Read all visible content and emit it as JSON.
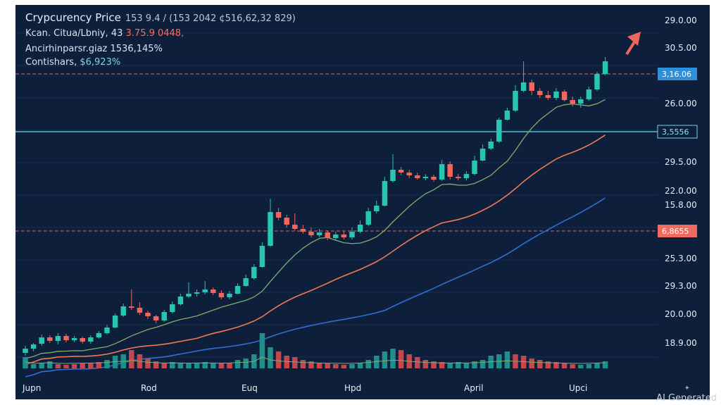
{
  "chart_data": {
    "type": "candlestick",
    "title": "Crypcurency Price",
    "title_values": "153 9.4 / (153 2042 ¢516,62,32 829)",
    "info": [
      {
        "label": "Kcan. Citua/Lbniy, 43",
        "value": "3.75.9 0448,"
      },
      {
        "label": "Ancirhinparsr.giaz",
        "value": "1536,145%"
      },
      {
        "label": "Contishars,",
        "value": "$6,923%"
      }
    ],
    "colors": {
      "background": "#0d1f3a",
      "up": "#26c6b0",
      "down": "#f0655c",
      "ma_fast": "#7fb069",
      "ma_mid": "#f07a52",
      "ma_slow": "#2f6fd6",
      "hline_red": "#d86a6a",
      "hline_cyan": "#6fd6ee",
      "label_blue": "#2f8fd8",
      "label_red": "#ef6b60"
    },
    "y_axis_labels": [
      "29.0.00",
      "30.5.00",
      "26.0.00",
      "29.5.00",
      "22.0.00",
      "15.8.00",
      "25.3.00",
      "29.3.00",
      "20.0.00",
      "18.9.00"
    ],
    "price_labels": [
      {
        "text": "3,16.06",
        "style": "blue"
      },
      {
        "text": "3,5556",
        "style": "cyan"
      },
      {
        "text": "6,8655",
        "style": "red"
      }
    ],
    "x_axis_labels": [
      "Jupn",
      "Rod",
      "Euq",
      "Hpd",
      "April",
      "Upci"
    ],
    "candles": [
      [
        494,
        488,
        498,
        484
      ],
      [
        488,
        482,
        492,
        480
      ],
      [
        481,
        472,
        484,
        468
      ],
      [
        472,
        477,
        480,
        469
      ],
      [
        477,
        470,
        482,
        466
      ],
      [
        470,
        476,
        479,
        467
      ],
      [
        476,
        473,
        479,
        470
      ],
      [
        473,
        478,
        481,
        471
      ],
      [
        478,
        472,
        481,
        469
      ],
      [
        472,
        466,
        474,
        463
      ],
      [
        466,
        458,
        468,
        454
      ],
      [
        458,
        441,
        459,
        438
      ],
      [
        441,
        428,
        443,
        424
      ],
      [
        428,
        430,
        433,
        404
      ],
      [
        430,
        437,
        440,
        422
      ],
      [
        437,
        442,
        446,
        434
      ],
      [
        442,
        448,
        452,
        440
      ],
      [
        448,
        436,
        450,
        433
      ],
      [
        436,
        425,
        438,
        421
      ],
      [
        425,
        414,
        427,
        410
      ],
      [
        414,
        410,
        416,
        394
      ],
      [
        410,
        408,
        414,
        404
      ],
      [
        408,
        404,
        411,
        392
      ],
      [
        404,
        409,
        412,
        401
      ],
      [
        409,
        415,
        418,
        405
      ],
      [
        415,
        410,
        418,
        406
      ],
      [
        410,
        399,
        411,
        395
      ],
      [
        399,
        388,
        400,
        383
      ],
      [
        388,
        372,
        390,
        368
      ],
      [
        372,
        342,
        373,
        337
      ],
      [
        342,
        294,
        343,
        275
      ],
      [
        294,
        302,
        306,
        288
      ],
      [
        302,
        312,
        316,
        298
      ],
      [
        312,
        318,
        320,
        296
      ],
      [
        318,
        322,
        325,
        312
      ],
      [
        322,
        327,
        330,
        316
      ],
      [
        327,
        323,
        330,
        318
      ],
      [
        323,
        331,
        334,
        320
      ],
      [
        331,
        326,
        334,
        322
      ],
      [
        326,
        330,
        333,
        321
      ],
      [
        330,
        322,
        333,
        316
      ],
      [
        322,
        312,
        324,
        306
      ],
      [
        312,
        293,
        314,
        288
      ],
      [
        293,
        285,
        296,
        278
      ],
      [
        285,
        250,
        286,
        244
      ],
      [
        250,
        234,
        252,
        212
      ],
      [
        234,
        238,
        242,
        230
      ],
      [
        238,
        242,
        246,
        234
      ],
      [
        242,
        246,
        248,
        238
      ],
      [
        246,
        244,
        249,
        240
      ],
      [
        244,
        248,
        251,
        241
      ],
      [
        248,
        226,
        250,
        220
      ],
      [
        226,
        244,
        248,
        222
      ],
      [
        244,
        246,
        249,
        240
      ],
      [
        246,
        240,
        249,
        236
      ],
      [
        240,
        221,
        242,
        214
      ],
      [
        221,
        204,
        222,
        198
      ],
      [
        204,
        194,
        206,
        190
      ],
      [
        194,
        163,
        196,
        160
      ],
      [
        163,
        150,
        164,
        146
      ],
      [
        150,
        122,
        152,
        114
      ],
      [
        122,
        110,
        124,
        80
      ],
      [
        110,
        122,
        128,
        106
      ],
      [
        122,
        128,
        132,
        118
      ],
      [
        128,
        132,
        135,
        122
      ],
      [
        132,
        123,
        135,
        118
      ],
      [
        123,
        135,
        137,
        120
      ],
      [
        135,
        140,
        144,
        130
      ],
      [
        140,
        134,
        146,
        130
      ],
      [
        134,
        120,
        136,
        116
      ],
      [
        120,
        98,
        122,
        95
      ],
      [
        98,
        80,
        100,
        74
      ]
    ],
    "volume": [
      [
        16,
        1
      ],
      [
        6,
        1
      ],
      [
        8,
        1
      ],
      [
        10,
        1
      ],
      [
        6,
        0
      ],
      [
        5,
        0
      ],
      [
        6,
        0
      ],
      [
        7,
        0
      ],
      [
        8,
        0
      ],
      [
        9,
        0
      ],
      [
        12,
        1
      ],
      [
        18,
        1
      ],
      [
        20,
        1
      ],
      [
        26,
        0
      ],
      [
        20,
        0
      ],
      [
        14,
        0
      ],
      [
        10,
        0
      ],
      [
        8,
        0
      ],
      [
        9,
        1
      ],
      [
        8,
        1
      ],
      [
        7,
        1
      ],
      [
        8,
        1
      ],
      [
        9,
        1
      ],
      [
        8,
        1
      ],
      [
        7,
        0
      ],
      [
        8,
        0
      ],
      [
        12,
        1
      ],
      [
        14,
        1
      ],
      [
        20,
        1
      ],
      [
        50,
        1
      ],
      [
        30,
        1
      ],
      [
        24,
        0
      ],
      [
        18,
        0
      ],
      [
        16,
        0
      ],
      [
        12,
        0
      ],
      [
        10,
        0
      ],
      [
        8,
        0
      ],
      [
        7,
        0
      ],
      [
        6,
        0
      ],
      [
        5,
        0
      ],
      [
        6,
        1
      ],
      [
        8,
        1
      ],
      [
        12,
        1
      ],
      [
        18,
        1
      ],
      [
        24,
        1
      ],
      [
        28,
        1
      ],
      [
        26,
        0
      ],
      [
        20,
        0
      ],
      [
        16,
        0
      ],
      [
        12,
        0
      ],
      [
        10,
        0
      ],
      [
        9,
        0
      ],
      [
        8,
        1
      ],
      [
        9,
        1
      ],
      [
        8,
        1
      ],
      [
        10,
        1
      ],
      [
        12,
        1
      ],
      [
        18,
        1
      ],
      [
        20,
        1
      ],
      [
        24,
        1
      ],
      [
        20,
        0
      ],
      [
        18,
        0
      ],
      [
        14,
        0
      ],
      [
        12,
        0
      ],
      [
        10,
        0
      ],
      [
        9,
        0
      ],
      [
        7,
        0
      ],
      [
        6,
        0
      ],
      [
        5,
        1
      ],
      [
        6,
        1
      ],
      [
        8,
        1
      ],
      [
        10,
        1
      ]
    ]
  },
  "watermark": "AI Generated"
}
